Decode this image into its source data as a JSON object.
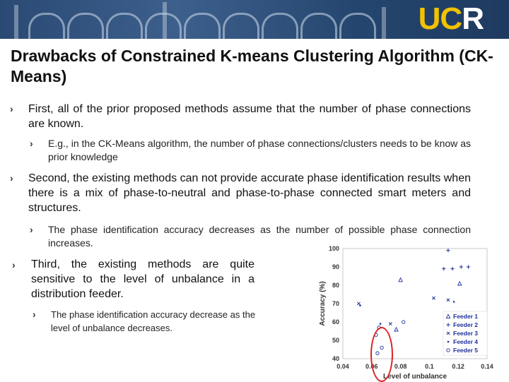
{
  "logo": {
    "u": "UC",
    "r": "R"
  },
  "title": "Drawbacks of Constrained K-means Clustering Algorithm (CK-Means)",
  "bullets": {
    "b1": "First, all of the prior proposed methods assume that the number of phase connections are known.",
    "b1a": "E.g., in the CK-Means algorithm, the number of phase connections/clusters needs to be know as prior knowledge",
    "b2": "Second, the existing methods can not provide accurate phase identification results when there is a mix of phase-to-neutral and phase-to-phase connected smart meters and structures.",
    "b2a": "The phase identification accuracy decreases as the number of possible phase connection increases.",
    "b3": "Third, the existing methods are quite sensitive to the level of unbalance in a distribution feeder.",
    "b3a": "The phase identification accuracy decrease as the level of unbalance decreases."
  },
  "chart_data": {
    "type": "scatter",
    "xlabel": "Level of unbalance",
    "ylabel": "Accuracy (%)",
    "xlim": [
      0.04,
      0.14
    ],
    "ylim": [
      40,
      100
    ],
    "xticks": [
      "0.04",
      "0.06",
      "0.08",
      "0.1",
      "0.12",
      "0.14"
    ],
    "yticks": [
      "40",
      "50",
      "60",
      "70",
      "80",
      "90",
      "100"
    ],
    "legend_position": "bottom-right",
    "series": [
      {
        "name": "Feeder 1",
        "marker": "triangle",
        "points": [
          [
            0.08,
            83
          ],
          [
            0.077,
            56
          ],
          [
            0.121,
            81
          ]
        ]
      },
      {
        "name": "Feeder 2",
        "marker": "plus",
        "points": [
          [
            0.113,
            99
          ],
          [
            0.11,
            89
          ],
          [
            0.116,
            89
          ],
          [
            0.122,
            90
          ],
          [
            0.127,
            90
          ]
        ]
      },
      {
        "name": "Feeder 3",
        "marker": "x",
        "points": [
          [
            0.051,
            70
          ],
          [
            0.103,
            73
          ],
          [
            0.073,
            59
          ],
          [
            0.113,
            72
          ]
        ]
      },
      {
        "name": "Feeder 4",
        "marker": "dot",
        "points": [
          [
            0.052,
            69
          ],
          [
            0.066,
            59
          ],
          [
            0.117,
            71
          ]
        ]
      },
      {
        "name": "Feeder 5",
        "marker": "circle",
        "points": [
          [
            0.065,
            57
          ],
          [
            0.082,
            60
          ],
          [
            0.063,
            53
          ],
          [
            0.067,
            46
          ],
          [
            0.064,
            43
          ]
        ]
      }
    ]
  },
  "colors": {
    "series": "#1f2f9e",
    "highlight": "#dd2222",
    "logo": "#f2c200"
  },
  "icons": {
    "bullet": "chevron-right-icon"
  }
}
